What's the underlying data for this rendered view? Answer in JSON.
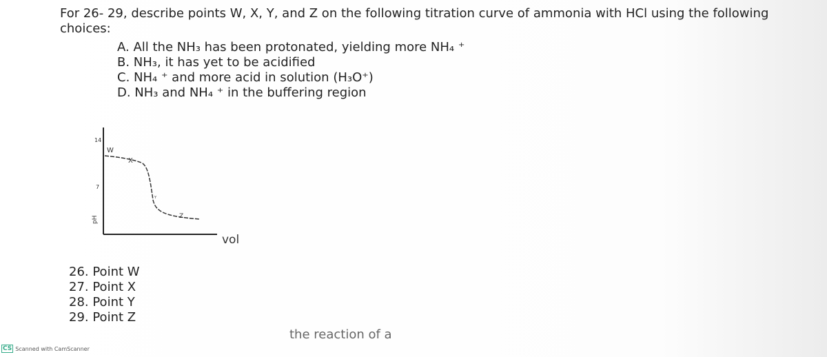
{
  "header": {
    "instructions": "For 26- 29, describe points W, X, Y, and Z on the following titration curve of ammonia with HCl using the following choices:"
  },
  "choices": [
    "A. All the NH₃ has been protonated, yielding more NH₄ ⁺",
    "B. NH₃, it has yet to be acidified",
    "C. NH₄ ⁺ and more acid in solution (H₃O⁺)",
    "D. NH₃ and NH₄ ⁺ in the buffering region"
  ],
  "figure": {
    "y_axis_label": "pH",
    "y_ticks": [
      "14",
      "7"
    ],
    "x_axis_label": "vol",
    "points": [
      "W",
      "X",
      "Y",
      "Z"
    ]
  },
  "questions": [
    "26. Point W",
    "27. Point X",
    "28. Point Y",
    "29. Point Z"
  ],
  "cutoff_text": "the reaction of a",
  "footer": {
    "logo": "CS",
    "watermark": "Scanned with CamScanner"
  }
}
